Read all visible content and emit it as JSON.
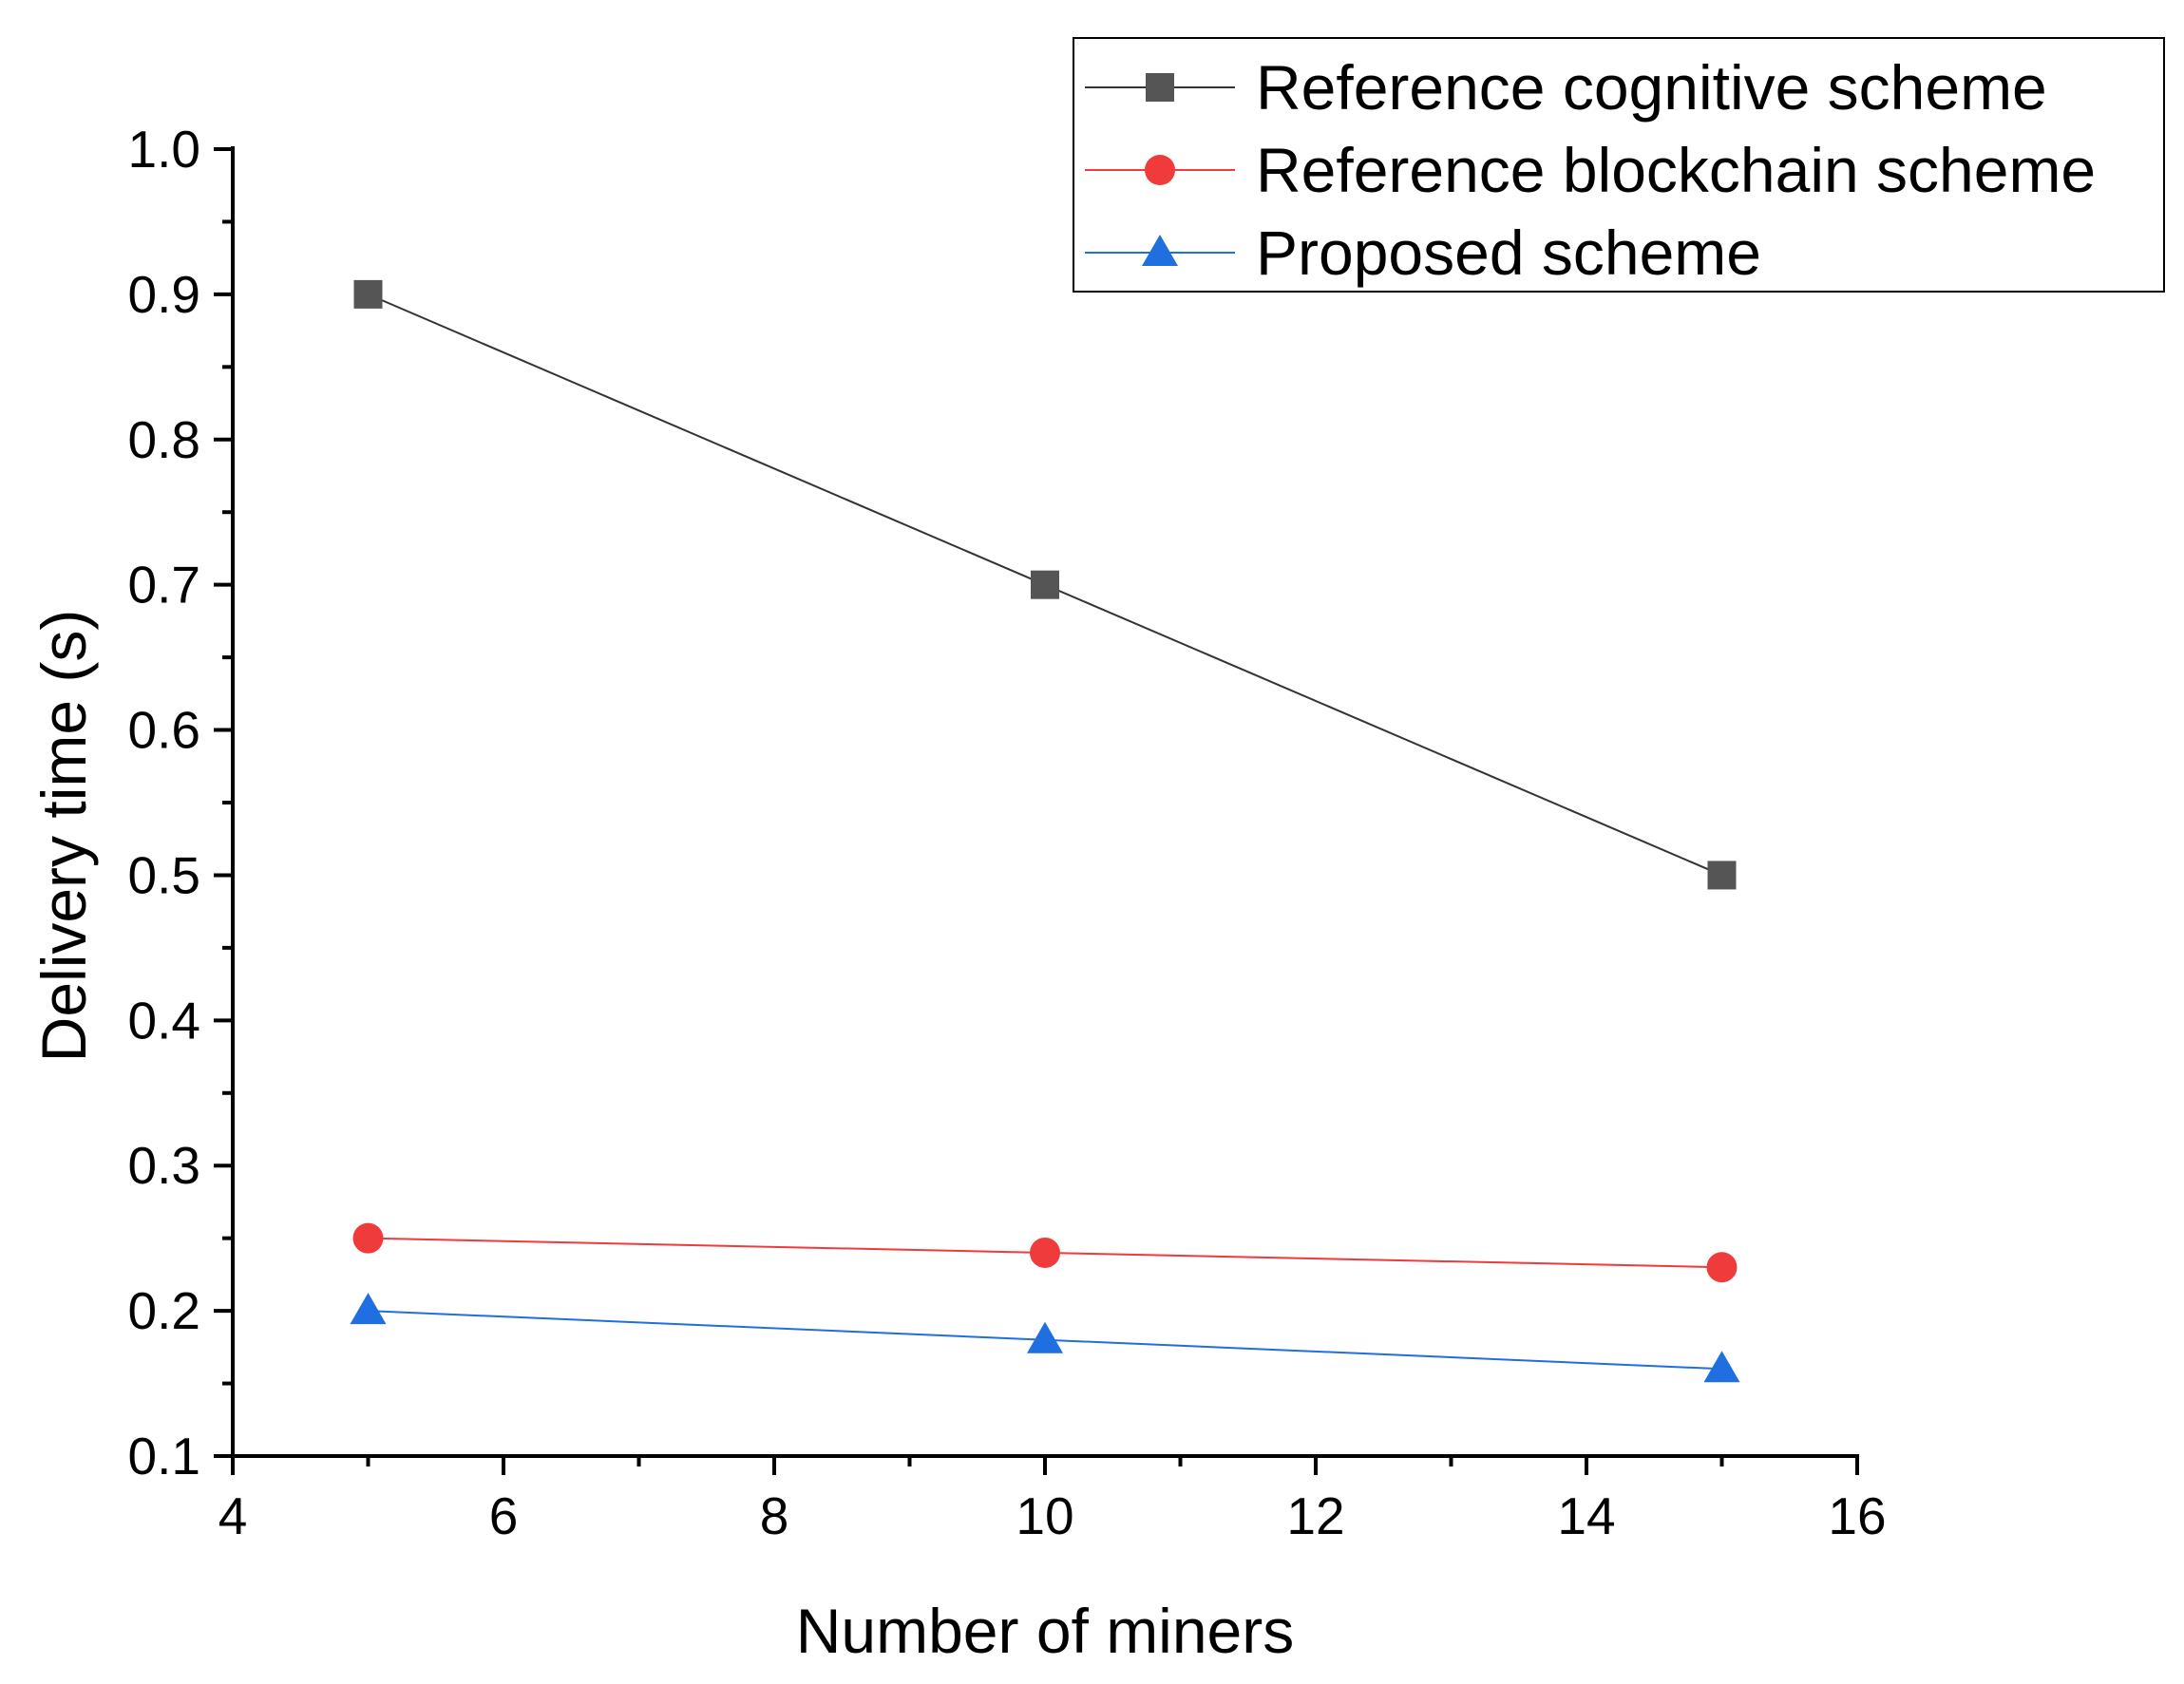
{
  "chart_data": {
    "type": "line",
    "xlabel": "Number of miners",
    "ylabel": "Delivery time (s)",
    "xlim": [
      4,
      16
    ],
    "ylim": [
      0.1,
      1.0
    ],
    "xticks": [
      4,
      6,
      8,
      10,
      12,
      14,
      16
    ],
    "xtick_labels": [
      "4",
      "6",
      "8",
      "10",
      "12",
      "14",
      "16"
    ],
    "yticks": [
      0.1,
      0.2,
      0.3,
      0.4,
      0.5,
      0.6,
      0.7,
      0.8,
      0.9,
      1.0
    ],
    "ytick_labels": [
      "0.1",
      "0.2",
      "0.3",
      "0.4",
      "0.5",
      "0.6",
      "0.7",
      "0.8",
      "0.9",
      "1.0"
    ],
    "grid": false,
    "legend_position": "top-right",
    "x": [
      5,
      10,
      15
    ],
    "series": [
      {
        "name": "Reference cognitive scheme",
        "values": [
          0.9,
          0.7,
          0.5
        ],
        "color": "#555555",
        "line_color": "#333333",
        "marker": "square"
      },
      {
        "name": "Reference blockchain scheme",
        "values": [
          0.25,
          0.24,
          0.23
        ],
        "color": "#ef3b3b",
        "line_color": "#ef3b3b",
        "marker": "circle"
      },
      {
        "name": "Proposed scheme",
        "values": [
          0.2,
          0.18,
          0.16
        ],
        "color": "#1f6fe0",
        "line_color": "#1f6fe0",
        "marker": "triangle"
      }
    ]
  }
}
